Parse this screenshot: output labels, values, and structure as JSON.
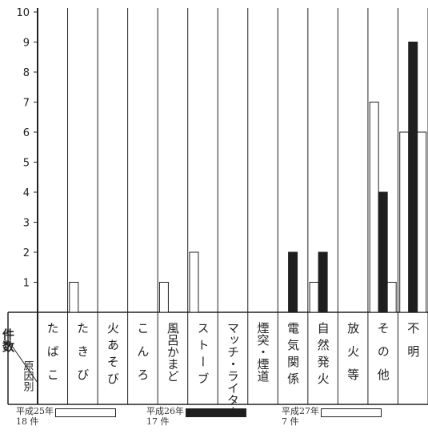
{
  "chart_data": {
    "type": "bar",
    "title": "",
    "xlabel": "原因別",
    "ylabel": "件数",
    "ylim": [
      0,
      10
    ],
    "yticks": [
      "1",
      "2",
      "3",
      "4",
      "5",
      "6",
      "7",
      "8",
      "9",
      "10"
    ],
    "categories": [
      "たばこ",
      "たきび",
      "火あそび",
      "こんろ",
      "風呂かまど",
      "ストーブ",
      "マッチ・ライター",
      "煙突・煙道",
      "電気関係",
      "自然発火",
      "放火等",
      "その他",
      "不明"
    ],
    "series": [
      {
        "name": "平成25年",
        "count": "18 件",
        "color": "#ffffff",
        "values": [
          0,
          1,
          0,
          0,
          1,
          2,
          0,
          0,
          0,
          1,
          0,
          7,
          6
        ]
      },
      {
        "name": "平成26年",
        "count": "17 件",
        "color": "#1e1e1e",
        "values": [
          0,
          0,
          0,
          0,
          0,
          0,
          0,
          0,
          2,
          2,
          0,
          4,
          9
        ]
      },
      {
        "name": "平成27年",
        "count": "7 件",
        "color": "#ffffff",
        "values": [
          0,
          0,
          0,
          0,
          0,
          0,
          0,
          0,
          0,
          0,
          0,
          1,
          6
        ]
      }
    ],
    "grid": false,
    "legend": "bottom"
  },
  "header": {
    "count_label": "件数",
    "cause_label": "原因別"
  }
}
